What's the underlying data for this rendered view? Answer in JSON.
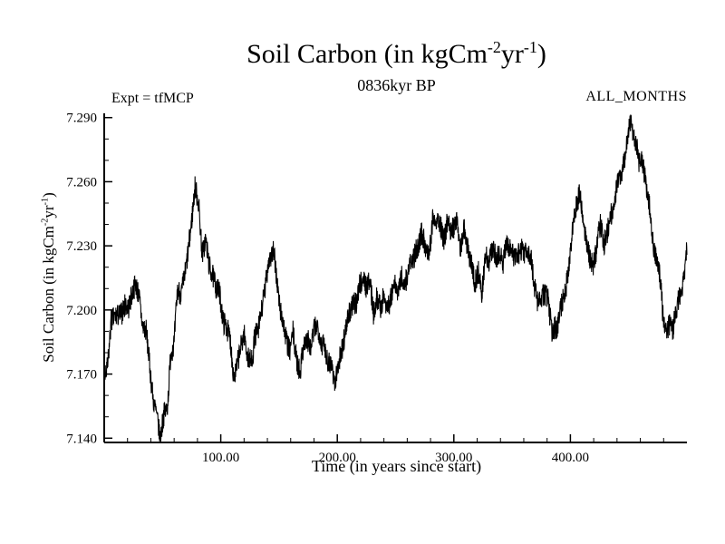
{
  "chart_data": {
    "type": "line",
    "title_parts": {
      "prefix": "Soil Carbon (in kgCm",
      "sup1": "-2",
      "mid": "yr",
      "sup2": "-1",
      "suffix": ")"
    },
    "subtitle": "0836kyr BP",
    "annotation_left": "Expt = tfMCP",
    "annotation_right": "ALL_MONTHS",
    "xlabel": "Time (in years since start)",
    "ylabel_parts": {
      "prefix": "Soil Carbon (in kgCm",
      "sup1": "-2",
      "mid": "yr",
      "sup2": "-1",
      "suffix": ")"
    },
    "line_color": "#000000",
    "grid": false,
    "legend": "none",
    "xlim": [
      0,
      500
    ],
    "ylim": [
      7.138,
      7.292
    ],
    "x_ticks": [
      {
        "value": 100,
        "label": "100.00"
      },
      {
        "value": 200,
        "label": "200.00"
      },
      {
        "value": 300,
        "label": "300.00"
      },
      {
        "value": 400,
        "label": "400.00"
      }
    ],
    "y_ticks": [
      {
        "value": 7.14,
        "label": "7.140"
      },
      {
        "value": 7.17,
        "label": "7.170"
      },
      {
        "value": 7.2,
        "label": "7.200"
      },
      {
        "value": 7.23,
        "label": "7.230"
      },
      {
        "value": 7.26,
        "label": "7.260"
      },
      {
        "value": 7.29,
        "label": "7.290"
      }
    ],
    "x_minor_step": 20,
    "y_minor_step": 0.01,
    "anchors": [
      [
        0,
        7.175
      ],
      [
        10,
        7.195
      ],
      [
        20,
        7.205
      ],
      [
        30,
        7.21
      ],
      [
        40,
        7.17
      ],
      [
        48,
        7.143
      ],
      [
        55,
        7.16
      ],
      [
        62,
        7.2
      ],
      [
        70,
        7.225
      ],
      [
        78,
        7.257
      ],
      [
        85,
        7.23
      ],
      [
        95,
        7.21
      ],
      [
        105,
        7.185
      ],
      [
        112,
        7.176
      ],
      [
        120,
        7.19
      ],
      [
        128,
        7.18
      ],
      [
        138,
        7.21
      ],
      [
        145,
        7.224
      ],
      [
        152,
        7.2
      ],
      [
        160,
        7.185
      ],
      [
        168,
        7.176
      ],
      [
        175,
        7.19
      ],
      [
        185,
        7.185
      ],
      [
        195,
        7.168
      ],
      [
        205,
        7.18
      ],
      [
        215,
        7.2
      ],
      [
        225,
        7.21
      ],
      [
        235,
        7.205
      ],
      [
        245,
        7.2
      ],
      [
        255,
        7.21
      ],
      [
        265,
        7.22
      ],
      [
        272,
        7.24
      ],
      [
        280,
        7.235
      ],
      [
        290,
        7.24
      ],
      [
        300,
        7.235
      ],
      [
        310,
        7.23
      ],
      [
        318,
        7.21
      ],
      [
        325,
        7.215
      ],
      [
        335,
        7.23
      ],
      [
        345,
        7.225
      ],
      [
        355,
        7.22
      ],
      [
        362,
        7.225
      ],
      [
        370,
        7.21
      ],
      [
        380,
        7.2
      ],
      [
        388,
        7.19
      ],
      [
        395,
        7.21
      ],
      [
        402,
        7.24
      ],
      [
        408,
        7.26
      ],
      [
        415,
        7.235
      ],
      [
        422,
        7.225
      ],
      [
        430,
        7.24
      ],
      [
        438,
        7.25
      ],
      [
        445,
        7.27
      ],
      [
        452,
        7.284
      ],
      [
        458,
        7.27
      ],
      [
        465,
        7.26
      ],
      [
        472,
        7.23
      ],
      [
        480,
        7.2
      ],
      [
        488,
        7.185
      ],
      [
        495,
        7.21
      ],
      [
        500,
        7.225
      ]
    ],
    "noise": {
      "seed": 7,
      "n_points": 2600,
      "medium_amp": 0.0085,
      "medium_step_years": 3,
      "fast_amp": 0.0055
    }
  }
}
